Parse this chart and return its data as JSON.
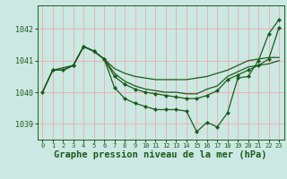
{
  "background_color": "#cbe8e3",
  "grid_color": "#f0aaaa",
  "line_color": "#1a5c1a",
  "xlabel": "Graphe pression niveau de la mer (hPa)",
  "xlabel_fontsize": 7.5,
  "tick_fontsize": 6,
  "ylim": [
    1038.5,
    1042.75
  ],
  "xlim": [
    -0.5,
    23.5
  ],
  "yticks": [
    1039,
    1040,
    1041,
    1042
  ],
  "xticks": [
    0,
    1,
    2,
    3,
    4,
    5,
    6,
    7,
    8,
    9,
    10,
    11,
    12,
    13,
    14,
    15,
    16,
    17,
    18,
    19,
    20,
    21,
    22,
    23
  ],
  "series": [
    {
      "x": [
        0,
        1,
        2,
        3,
        4,
        5,
        6,
        7,
        8,
        9,
        10,
        11,
        12,
        13,
        14,
        15,
        16,
        17,
        18,
        19,
        20,
        21,
        22,
        23
      ],
      "y": [
        1040.0,
        1040.7,
        1040.7,
        1040.85,
        1041.45,
        1041.3,
        1041.05,
        1040.75,
        1040.6,
        1040.5,
        1040.45,
        1040.4,
        1040.4,
        1040.4,
        1040.4,
        1040.45,
        1040.5,
        1040.6,
        1040.7,
        1040.85,
        1041.0,
        1041.05,
        1041.1,
        1041.1
      ],
      "markers": false,
      "linewidth": 0.9
    },
    {
      "x": [
        0,
        1,
        2,
        3,
        4,
        5,
        6,
        7,
        8,
        9,
        10,
        11,
        12,
        13,
        14,
        15,
        16,
        17,
        18,
        19,
        20,
        21,
        22,
        23
      ],
      "y": [
        1040.0,
        1040.7,
        1040.7,
        1040.85,
        1041.45,
        1041.3,
        1041.05,
        1040.6,
        1040.35,
        1040.2,
        1040.1,
        1040.05,
        1040.0,
        1040.0,
        1039.95,
        1039.95,
        1040.1,
        1040.2,
        1040.5,
        1040.65,
        1040.8,
        1040.85,
        1040.9,
        1041.0
      ],
      "markers": false,
      "linewidth": 0.9
    },
    {
      "x": [
        1,
        3,
        4,
        5,
        6,
        7,
        8,
        9,
        10,
        11,
        12,
        13,
        14,
        15,
        16,
        17,
        18,
        19,
        20,
        21,
        22,
        23
      ],
      "y": [
        1040.7,
        1040.85,
        1041.45,
        1041.3,
        1041.05,
        1040.15,
        1039.8,
        1039.65,
        1039.55,
        1039.45,
        1039.45,
        1039.45,
        1039.4,
        1038.75,
        1039.05,
        1038.9,
        1039.35,
        1040.45,
        1040.5,
        1041.0,
        1041.85,
        1042.3
      ],
      "markers": true,
      "linewidth": 0.9
    },
    {
      "x": [
        0,
        1,
        2,
        3,
        4,
        5,
        6,
        7,
        8,
        9,
        10,
        11,
        12,
        13,
        14,
        15,
        16,
        17,
        18,
        19,
        20,
        21,
        22,
        23
      ],
      "y": [
        1040.0,
        1040.7,
        1040.7,
        1040.85,
        1041.45,
        1041.3,
        1041.05,
        1040.5,
        1040.25,
        1040.1,
        1040.0,
        1039.95,
        1039.9,
        1039.85,
        1039.8,
        1039.8,
        1039.9,
        1040.05,
        1040.4,
        1040.55,
        1040.7,
        1040.85,
        1041.05,
        1042.05
      ],
      "markers": true,
      "linewidth": 0.9
    }
  ]
}
